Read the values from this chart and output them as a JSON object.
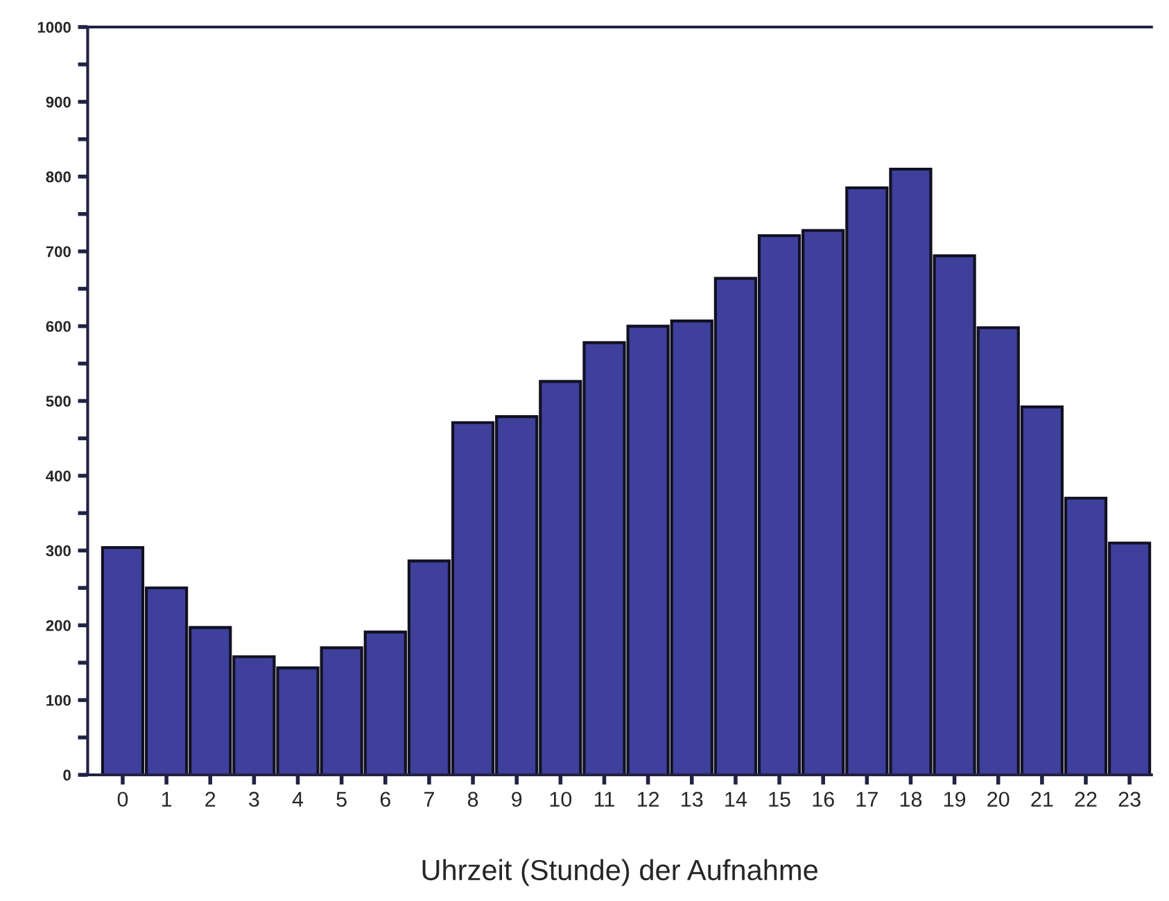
{
  "chart_data": {
    "type": "bar",
    "xlabel": "Uhrzeit (Stunde) der Aufnahme",
    "categories": [
      "0",
      "1",
      "2",
      "3",
      "4",
      "5",
      "6",
      "7",
      "8",
      "9",
      "10",
      "11",
      "12",
      "13",
      "14",
      "15",
      "16",
      "17",
      "18",
      "19",
      "20",
      "21",
      "22",
      "23"
    ],
    "values": [
      304,
      250,
      197,
      158,
      143,
      170,
      191,
      286,
      471,
      479,
      526,
      578,
      600,
      607,
      664,
      721,
      728,
      785,
      810,
      694,
      598,
      492,
      370,
      310
    ],
    "color": "#3f3f9c",
    "ylim": [
      0,
      1000
    ],
    "yticks": [
      0,
      {
        "value": 50,
        "label": null
      },
      100,
      {
        "value": 150,
        "label": null
      },
      200,
      {
        "value": 250,
        "label": null
      },
      300,
      {
        "value": 350,
        "label": null
      },
      400,
      {
        "value": 450,
        "label": null
      },
      500,
      {
        "value": 550,
        "label": null
      },
      600,
      {
        "value": 650,
        "label": null
      },
      700,
      {
        "value": 750,
        "label": null
      },
      800,
      {
        "value": 850,
        "label": null
      },
      900,
      {
        "value": 950,
        "label": null
      },
      1000
    ],
    "grid": false
  }
}
